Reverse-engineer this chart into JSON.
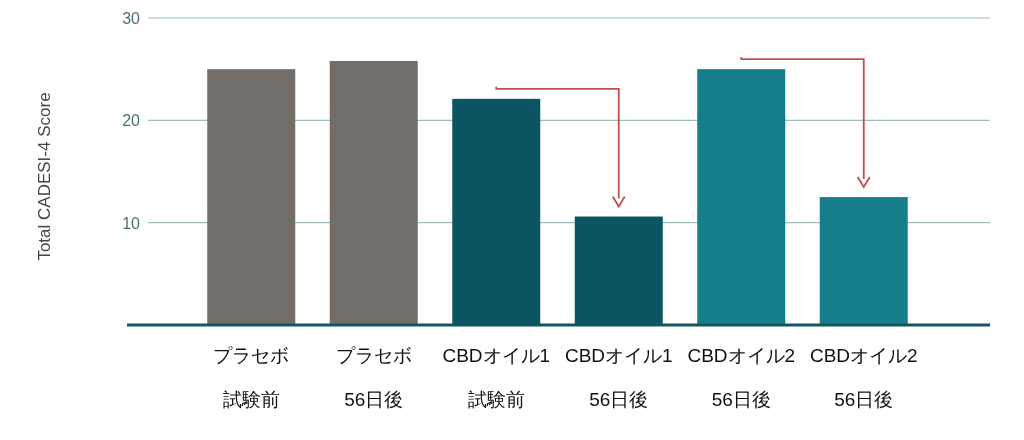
{
  "chart_data": {
    "type": "bar",
    "ylabel": "Total CADESI-4 Score",
    "categories": [
      "プラセボ試験前",
      "プラセボ56日後",
      "CBDオイル1試験前",
      "CBDオイル156日後",
      "CBDオイル256日後",
      "CBDオイル256日後"
    ],
    "values": [
      25.0,
      25.8,
      22.1,
      10.6,
      25.0,
      12.5
    ],
    "colors": [
      "#726d69",
      "#726d69",
      "#0b5662",
      "#0b5662",
      "#167e8a",
      "#167e8a"
    ],
    "ylim": [
      0,
      30
    ],
    "yticks": [
      10,
      20,
      30
    ],
    "grid": "y"
  }
}
